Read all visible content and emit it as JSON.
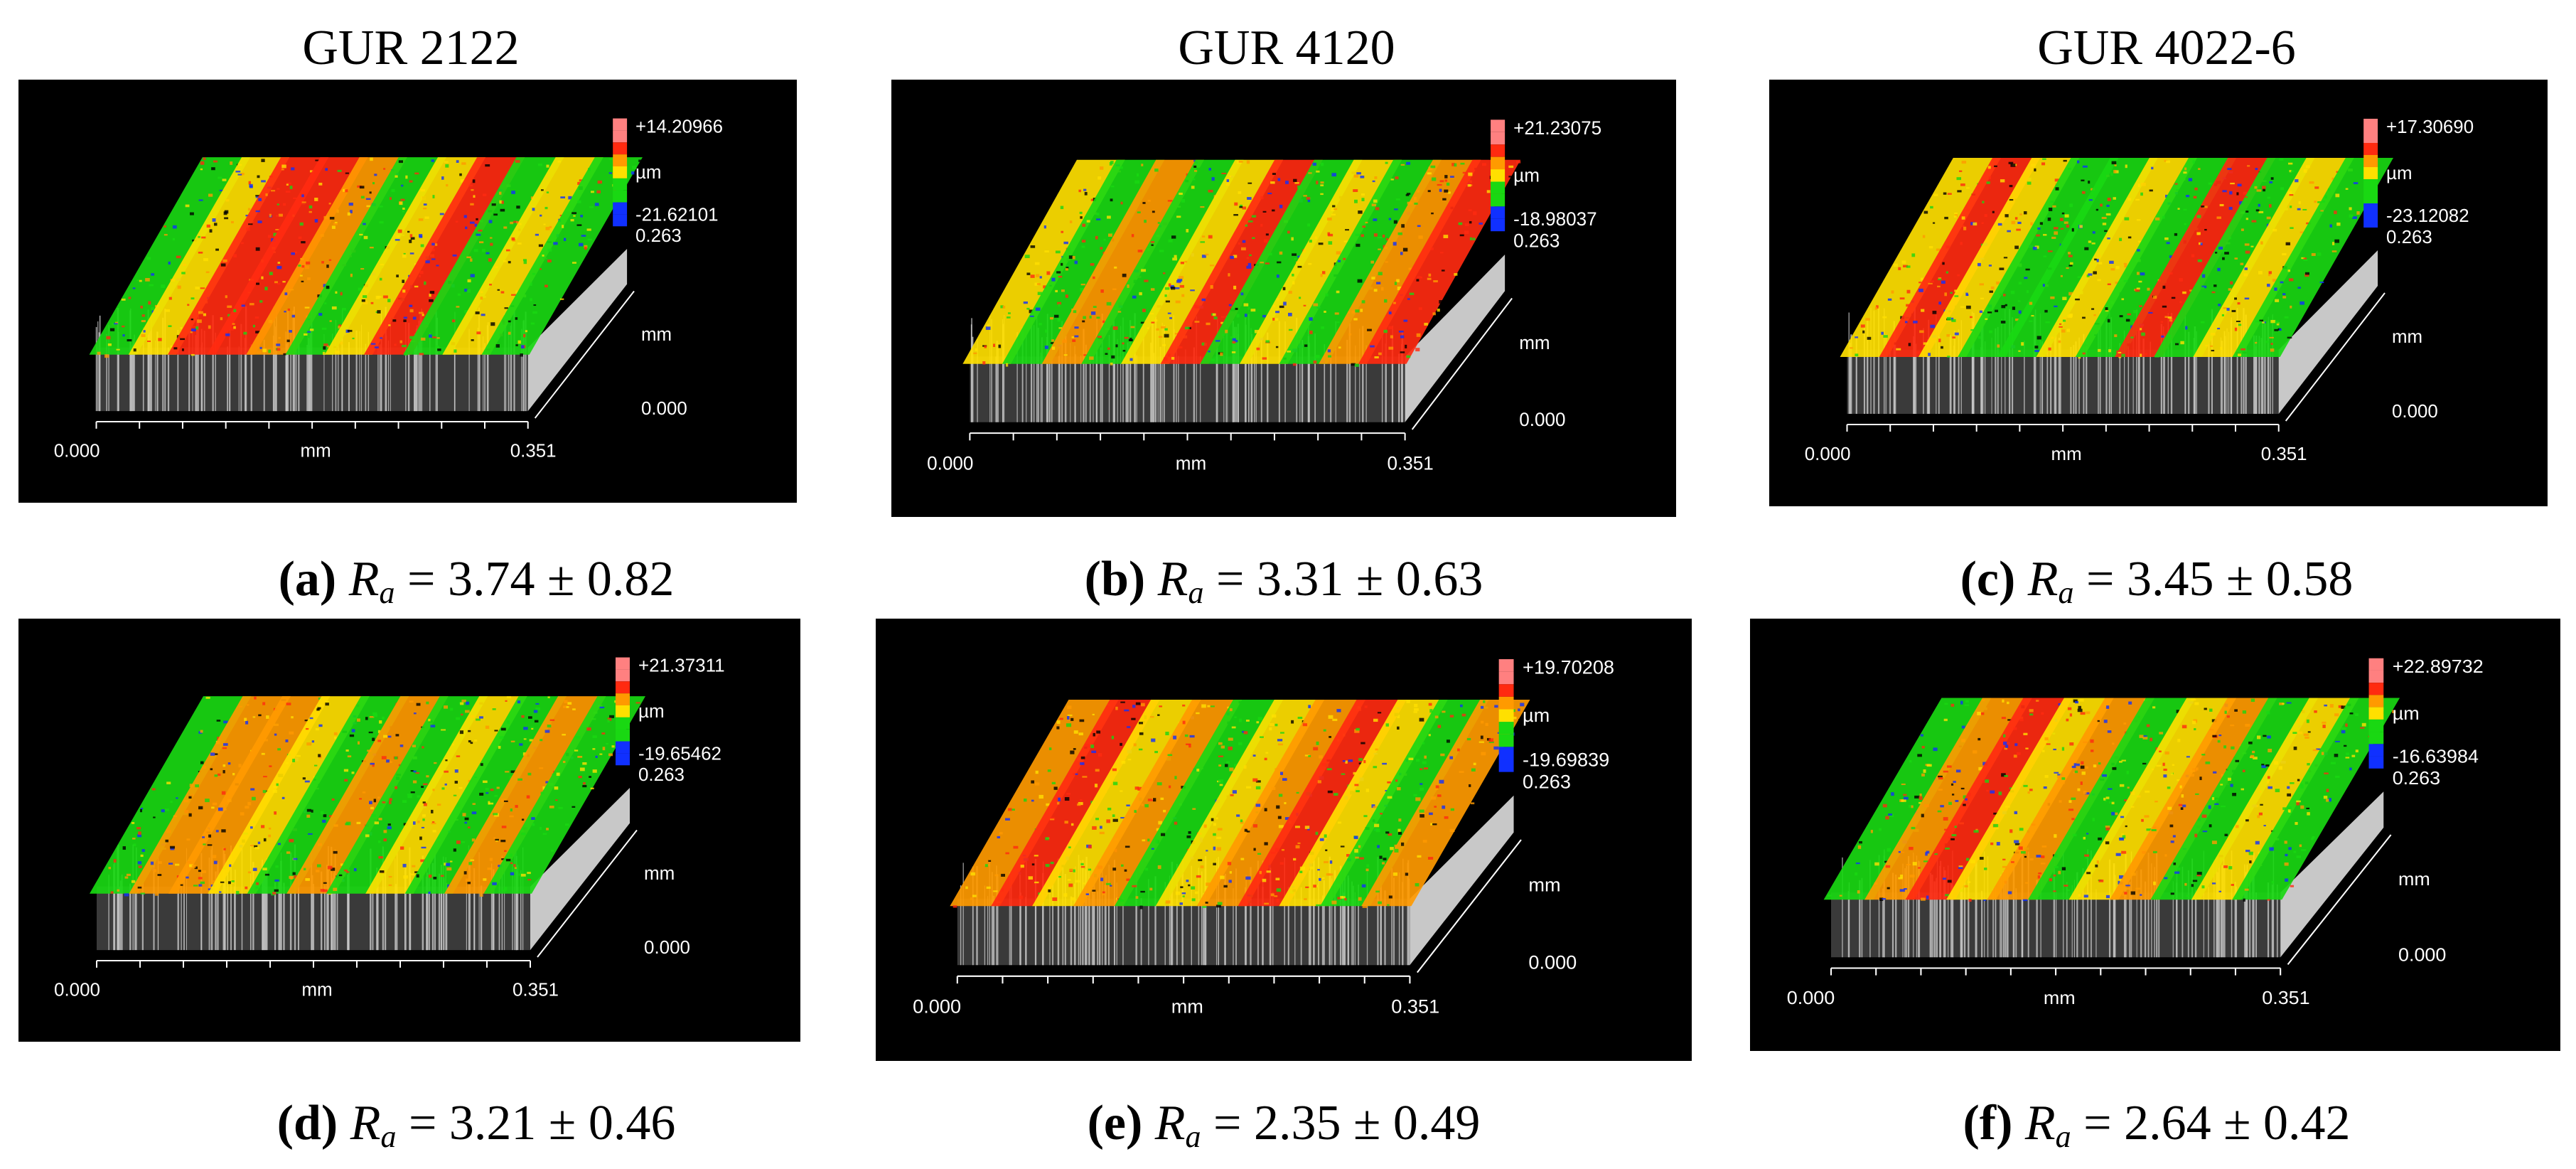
{
  "columns": [
    "GUR 2122",
    "GUR 4120",
    "GUR 4022-6"
  ],
  "colors": {
    "background": "#000000",
    "base": "#c8c8c8",
    "red": "#ff2a10",
    "orange": "#ff9a00",
    "yellow": "#ffe000",
    "green": "#19d812",
    "blue": "#1030ff",
    "pink": "#ff8080"
  },
  "panels": [
    {
      "id": "a",
      "label": "(a)",
      "ra_symbol": "R",
      "ra_sub": "a",
      "ra_text": "= 3.74 ± 0.82",
      "zmax": "+14.20966",
      "zmin": "-21.62101",
      "zunit": "µm",
      "ymax": "0.263",
      "ymid": "mm",
      "ymin": "0.000",
      "xmin": "0.000",
      "xmid": "mm",
      "xmax": "0.351",
      "scheme": [
        "green",
        "yellow",
        "red",
        "red",
        "orange",
        "green",
        "yellow",
        "red",
        "green",
        "yellow",
        "green"
      ]
    },
    {
      "id": "b",
      "label": "(b)",
      "ra_symbol": "R",
      "ra_sub": "a",
      "ra_text": "= 3.31 ± 0.63",
      "zmax": "+21.23075",
      "zmin": "-18.98037",
      "zunit": "µm",
      "ymax": "0.263",
      "ymid": "mm",
      "ymin": "0.000",
      "xmin": "0.000",
      "xmid": "mm",
      "xmax": "0.351",
      "scheme": [
        "yellow",
        "green",
        "orange",
        "green",
        "yellow",
        "red",
        "green",
        "yellow",
        "green",
        "orange",
        "red"
      ]
    },
    {
      "id": "c",
      "label": "(c)",
      "ra_symbol": "R",
      "ra_sub": "a",
      "ra_text": "= 3.45 ± 0.58",
      "zmax": "+17.30690",
      "zmin": "-23.12082",
      "zunit": "µm",
      "ymax": "0.263",
      "ymid": "mm",
      "ymin": "0.000",
      "xmin": "0.000",
      "xmid": "mm",
      "xmax": "0.351",
      "scheme": [
        "yellow",
        "red",
        "yellow",
        "green",
        "green",
        "yellow",
        "green",
        "red",
        "green",
        "yellow",
        "green"
      ]
    },
    {
      "id": "d",
      "label": "(d)",
      "ra_symbol": "R",
      "ra_sub": "a",
      "ra_text": "= 3.21 ± 0.46",
      "zmax": "+21.37311",
      "zmin": "-19.65462",
      "zunit": "µm",
      "ymax": "0.263",
      "ymid": "mm",
      "ymin": "0.000",
      "xmin": "0.000",
      "xmid": "mm",
      "xmax": "0.351",
      "scheme": [
        "green",
        "orange",
        "orange",
        "yellow",
        "green",
        "orange",
        "green",
        "yellow",
        "green",
        "orange",
        "green"
      ]
    },
    {
      "id": "e",
      "label": "(e)",
      "ra_symbol": "R",
      "ra_sub": "a",
      "ra_text": "= 2.35 ± 0.49",
      "zmax": "+19.70208",
      "zmin": "-19.69839",
      "zunit": "µm",
      "ymax": "0.263",
      "ymid": "mm",
      "ymin": "0.000",
      "xmin": "0.000",
      "xmid": "mm",
      "xmax": "0.351",
      "scheme": [
        "orange",
        "red",
        "yellow",
        "orange",
        "green",
        "yellow",
        "orange",
        "red",
        "yellow",
        "green",
        "orange"
      ]
    },
    {
      "id": "f",
      "label": "(f)",
      "ra_symbol": "R",
      "ra_sub": "a",
      "ra_text": "= 2.64 ± 0.42",
      "zmax": "+22.89732",
      "zmin": "-16.63984",
      "zunit": "µm",
      "ymax": "0.263",
      "ymid": "mm",
      "ymin": "0.000",
      "xmin": "0.000",
      "xmid": "mm",
      "xmax": "0.351",
      "scheme": [
        "green",
        "orange",
        "red",
        "yellow",
        "orange",
        "green",
        "yellow",
        "orange",
        "green",
        "yellow",
        "green"
      ]
    }
  ]
}
